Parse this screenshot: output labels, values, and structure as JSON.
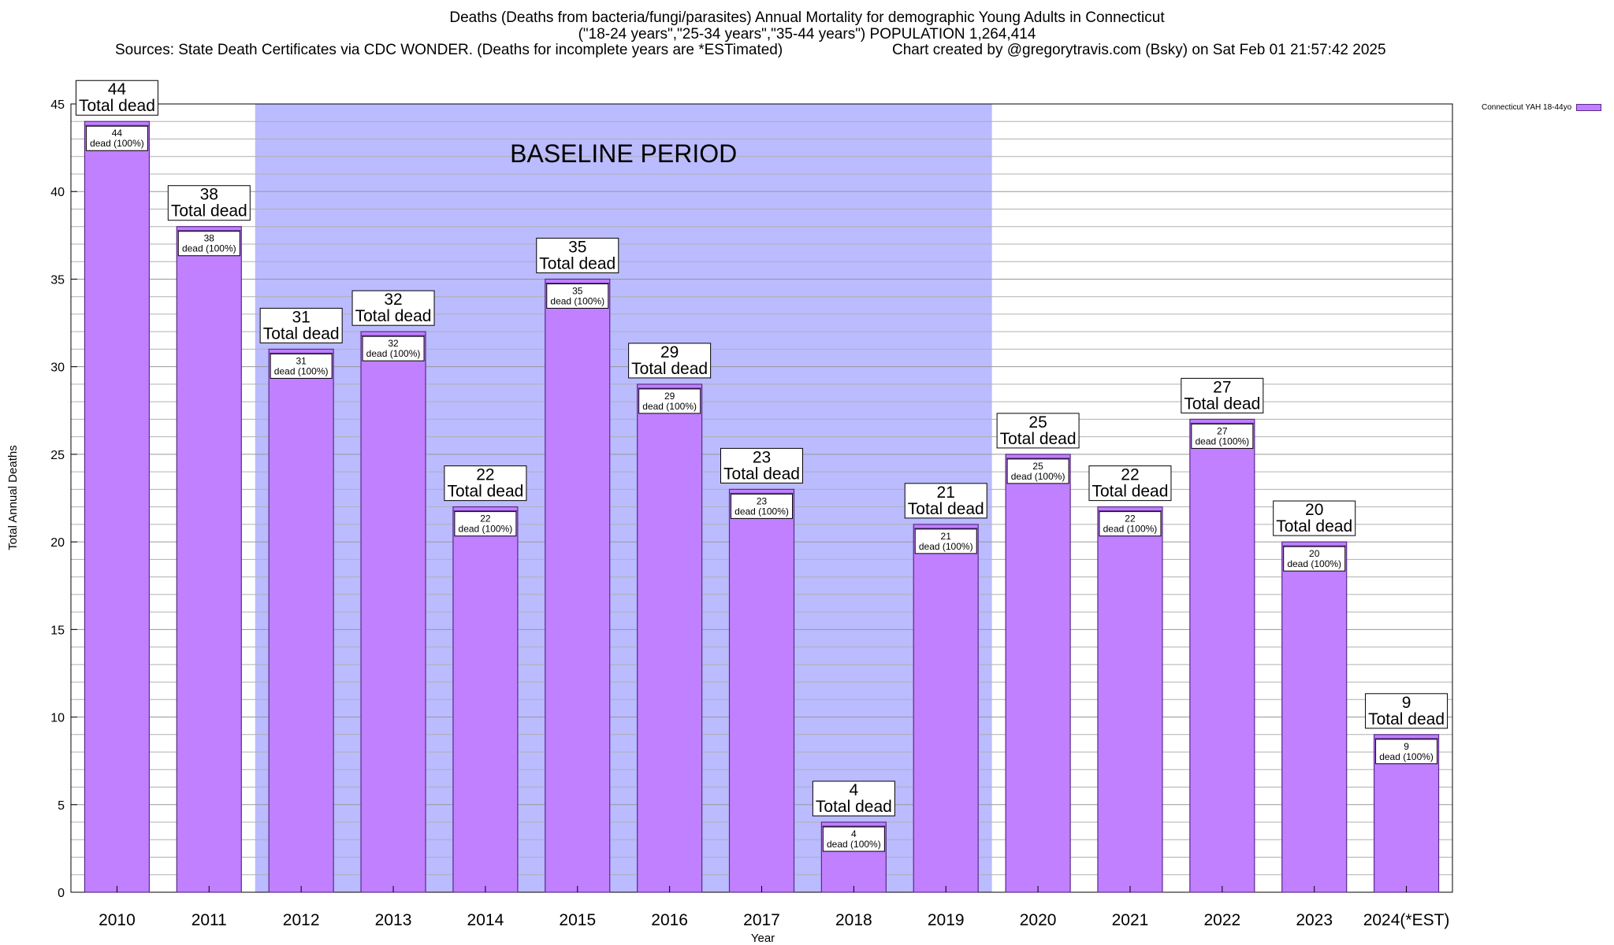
{
  "title": {
    "line1": "Deaths (Deaths from bacteria/fungi/parasites) Annual Mortality for demographic Young Adults in Connecticut",
    "line2": "(\"18-24 years\",\"25-34 years\",\"35-44 years\") POPULATION 1,264,414",
    "sources": "Sources: State Death Certificates via CDC WONDER. (Deaths for incomplete years are *ESTimated)",
    "credit": "Chart created by @gregorytravis.com (Bsky) on Sat Feb 01 21:57:42 2025"
  },
  "legend": {
    "label": "Connecticut YAH 18-44yo"
  },
  "colors": {
    "bar_fill": "#c080ff",
    "bar_edge": "#5a2a8a",
    "baseline_band": "#bbbbff",
    "grid": "#b0b0b0"
  },
  "chart_data": {
    "type": "bar",
    "categories": [
      "2010",
      "2011",
      "2012",
      "2013",
      "2014",
      "2015",
      "2016",
      "2017",
      "2018",
      "2019",
      "2020",
      "2021",
      "2022",
      "2023",
      "2024(*EST)"
    ],
    "series": [
      {
        "name": "Connecticut YAH 18-44yo",
        "values": [
          44,
          38,
          31,
          32,
          22,
          35,
          29,
          23,
          4,
          21,
          25,
          22,
          27,
          20,
          9
        ]
      }
    ],
    "bar_label_top": "Total dead",
    "bar_label_inner": "dead (100%)",
    "ylabel": "Total Annual Deaths",
    "xlabel": "Year",
    "ylim": [
      0,
      45
    ],
    "yticks": [
      0,
      5,
      10,
      15,
      20,
      25,
      30,
      35,
      40,
      45
    ],
    "grid": true,
    "legend_position": "top-right",
    "annotation": {
      "text": "BASELINE PERIOD",
      "from_category": "2012",
      "to_category": "2019"
    }
  }
}
